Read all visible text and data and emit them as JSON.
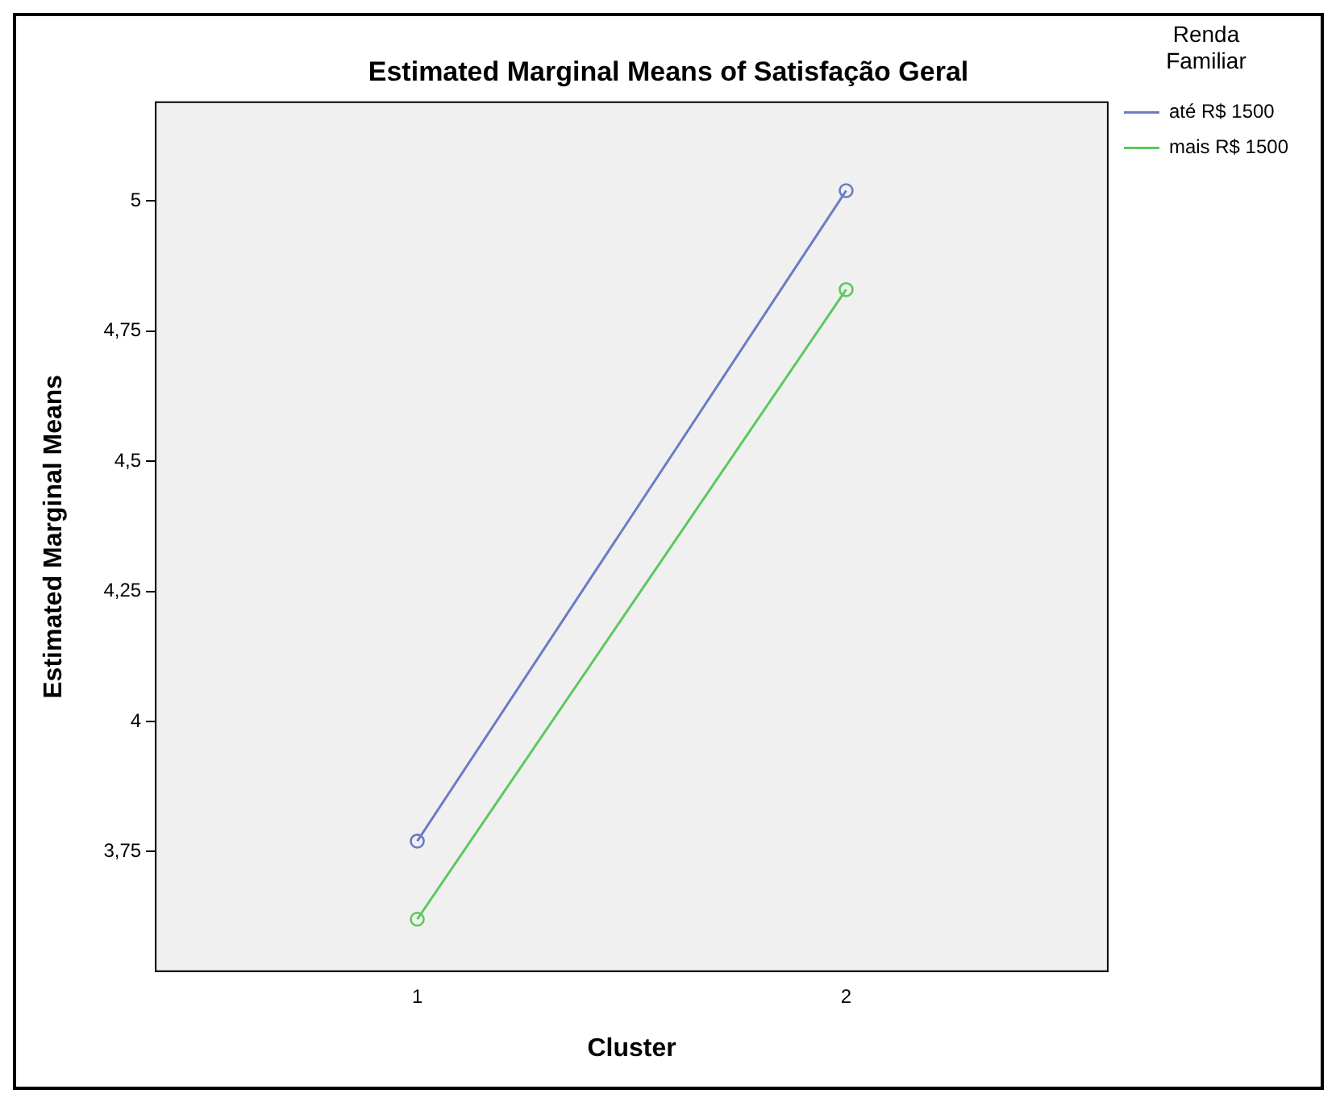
{
  "chart_data": {
    "type": "line",
    "title": "Estimated Marginal Means of Satisfação Geral",
    "xlabel": "Cluster",
    "ylabel": "Estimated Marginal Means",
    "legend_title": "Renda Familiar",
    "x": [
      1,
      2
    ],
    "xlim": [
      0.39,
      2.61
    ],
    "xticks": [
      1,
      2
    ],
    "ylim": [
      3.52,
      5.19
    ],
    "yticks": [
      {
        "value": 3.75,
        "label": "3,75"
      },
      4,
      {
        "value": 4.25,
        "label": "4,25"
      },
      {
        "value": 4.5,
        "label": "4,5"
      },
      {
        "value": 4.75,
        "label": "4,75"
      },
      5
    ],
    "series": [
      {
        "name": "até R$ 1500",
        "color": "#6b7bc4",
        "values": [
          3.77,
          5.02
        ]
      },
      {
        "name": "mais R$ 1500",
        "color": "#5cc85c",
        "values": [
          3.62,
          4.83
        ]
      }
    ],
    "grid": false,
    "legend": "right",
    "marker": "circle",
    "line_style": "solid"
  }
}
